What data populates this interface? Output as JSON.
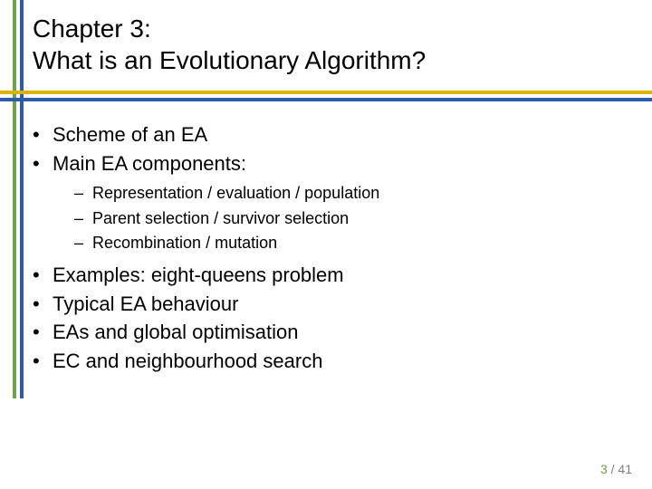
{
  "title": {
    "line1": "Chapter 3:",
    "line2": "What is an Evolutionary Algorithm?",
    "fontsize": 28,
    "color": "#000000"
  },
  "decor": {
    "green_vert_color": "#6ca644",
    "blue_vert_color": "#2a5caa",
    "yellow_horz_color": "#d9b300",
    "blue_horz_color": "#2a5caa"
  },
  "bullets": {
    "level1_fontsize": 22,
    "level2_fontsize": 18,
    "items": [
      {
        "text": "Scheme of an EA"
      },
      {
        "text": "Main EA components:",
        "sub": [
          "Representation / evaluation / population",
          "Parent selection / survivor selection",
          "Recombination / mutation"
        ]
      },
      {
        "text": "Examples: eight-queens problem"
      },
      {
        "text": "Typical EA behaviour"
      },
      {
        "text": "EAs and global optimisation"
      },
      {
        "text": "EC and neighbourhood search"
      }
    ]
  },
  "footer": {
    "current": "3",
    "separator": " / ",
    "total": "41",
    "current_color": "#6ca644",
    "total_color": "#808080",
    "fontsize": 14
  },
  "background_color": "#ffffff",
  "slide_width": 720,
  "slide_height": 540
}
